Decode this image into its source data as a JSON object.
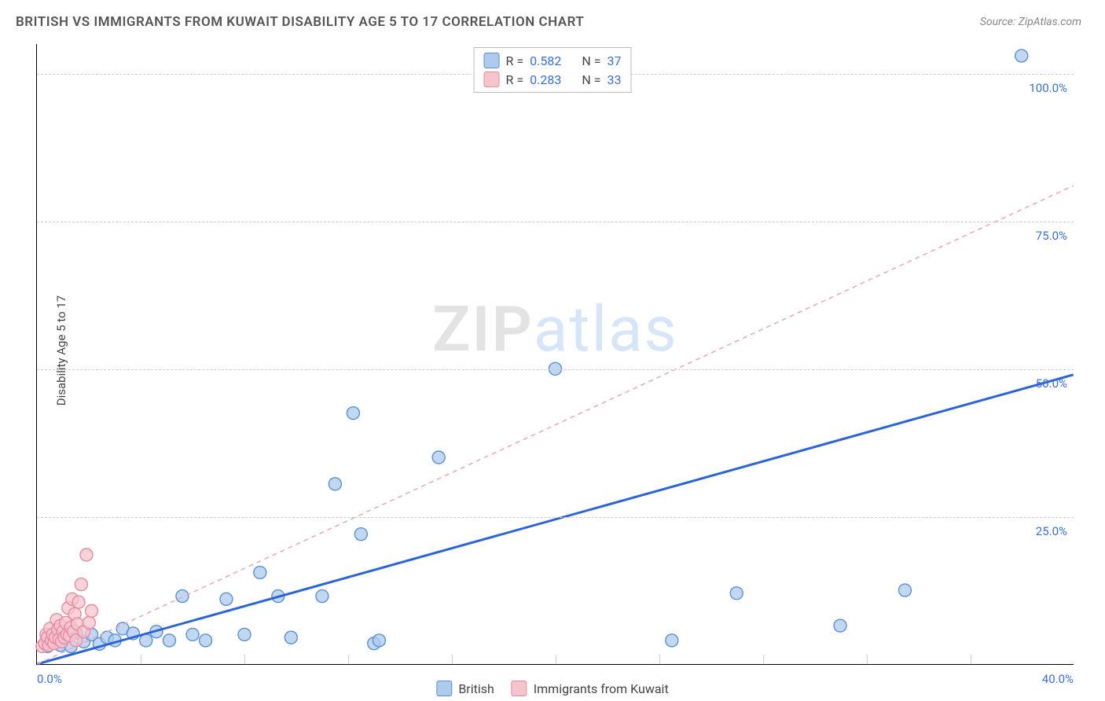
{
  "title": "BRITISH VS IMMIGRANTS FROM KUWAIT DISABILITY AGE 5 TO 17 CORRELATION CHART",
  "source": "Source: ZipAtlas.com",
  "yaxis_label": "Disability Age 5 to 17",
  "watermark": {
    "a": "ZIP",
    "b": "atlas"
  },
  "chart": {
    "type": "scatter-with-trend",
    "x_range": [
      0,
      40
    ],
    "y_range": [
      0,
      105
    ],
    "x_ticks": [
      0,
      40
    ],
    "x_tick_labels": [
      "0.0%",
      "40.0%"
    ],
    "x_minor_ticks": [
      4,
      8,
      12,
      16,
      20,
      24,
      28,
      32,
      36
    ],
    "y_ticks": [
      25,
      50,
      75,
      100
    ],
    "y_tick_labels": [
      "25.0%",
      "50.0%",
      "75.0%",
      "100.0%"
    ],
    "background_color": "#ffffff",
    "grid_color": "#cccccc",
    "series": [
      {
        "name": "British",
        "color_fill": "#aecbed",
        "color_stroke": "#5a8fd6",
        "swatch_fill": "#aecbed",
        "swatch_stroke": "#5a8fd6",
        "marker_radius": 8,
        "r_value": "0.582",
        "n_value": "37",
        "trend": {
          "x1": 0,
          "y1": 0,
          "x2": 40,
          "y2": 49,
          "stroke": "#2a64d8",
          "width": 3,
          "dash": "none"
        },
        "points": [
          [
            0.4,
            3.0
          ],
          [
            0.6,
            4.2
          ],
          [
            0.9,
            3.2
          ],
          [
            1.0,
            5.5
          ],
          [
            1.3,
            3.0
          ],
          [
            1.5,
            5.3
          ],
          [
            1.8,
            3.8
          ],
          [
            2.1,
            5.0
          ],
          [
            2.4,
            3.4
          ],
          [
            2.7,
            4.5
          ],
          [
            3.0,
            4.0
          ],
          [
            3.3,
            6.0
          ],
          [
            3.7,
            5.2
          ],
          [
            4.2,
            4.0
          ],
          [
            4.6,
            5.5
          ],
          [
            5.1,
            4.0
          ],
          [
            5.6,
            11.5
          ],
          [
            6.0,
            5.0
          ],
          [
            6.5,
            4.0
          ],
          [
            7.3,
            11.0
          ],
          [
            8.0,
            5.0
          ],
          [
            8.6,
            15.5
          ],
          [
            9.3,
            11.5
          ],
          [
            9.8,
            4.5
          ],
          [
            11.0,
            11.5
          ],
          [
            11.5,
            30.5
          ],
          [
            12.2,
            42.5
          ],
          [
            12.5,
            22.0
          ],
          [
            13.0,
            3.5
          ],
          [
            13.2,
            4.0
          ],
          [
            15.5,
            35.0
          ],
          [
            20.0,
            50.0
          ],
          [
            24.5,
            4.0
          ],
          [
            27.0,
            12.0
          ],
          [
            31.0,
            6.5
          ],
          [
            33.5,
            12.5
          ],
          [
            38.0,
            103.0
          ]
        ]
      },
      {
        "name": "Immigrants from Kuwait",
        "color_fill": "#f6c4cd",
        "color_stroke": "#e58aa0",
        "swatch_fill": "#f6c4cd",
        "swatch_stroke": "#e58aa0",
        "marker_radius": 8,
        "r_value": "0.283",
        "n_value": "33",
        "trend": {
          "x1": 0,
          "y1": 0,
          "x2": 40,
          "y2": 81,
          "stroke": "#e9a8b6",
          "width": 1.5,
          "dash": "6,5"
        },
        "points": [
          [
            0.2,
            3.0
          ],
          [
            0.3,
            3.5
          ],
          [
            0.35,
            5.0
          ],
          [
            0.4,
            4.5
          ],
          [
            0.45,
            3.2
          ],
          [
            0.5,
            6.0
          ],
          [
            0.55,
            4.0
          ],
          [
            0.6,
            5.0
          ],
          [
            0.65,
            3.5
          ],
          [
            0.7,
            4.5
          ],
          [
            0.75,
            7.5
          ],
          [
            0.8,
            5.8
          ],
          [
            0.85,
            4.2
          ],
          [
            0.9,
            6.5
          ],
          [
            0.95,
            3.8
          ],
          [
            1.0,
            5.5
          ],
          [
            1.05,
            4.5
          ],
          [
            1.1,
            7.0
          ],
          [
            1.15,
            5.0
          ],
          [
            1.2,
            9.5
          ],
          [
            1.25,
            4.8
          ],
          [
            1.3,
            6.2
          ],
          [
            1.35,
            11.0
          ],
          [
            1.4,
            5.5
          ],
          [
            1.45,
            8.5
          ],
          [
            1.5,
            4.0
          ],
          [
            1.55,
            6.8
          ],
          [
            1.6,
            10.5
          ],
          [
            1.7,
            13.5
          ],
          [
            1.8,
            5.5
          ],
          [
            1.9,
            18.5
          ],
          [
            2.0,
            7.0
          ],
          [
            2.1,
            9.0
          ]
        ]
      }
    ],
    "legend_labels": {
      "british": "British",
      "kuwait": "Immigrants from Kuwait"
    },
    "corr_labels": {
      "r": "R =",
      "n": "N ="
    }
  }
}
